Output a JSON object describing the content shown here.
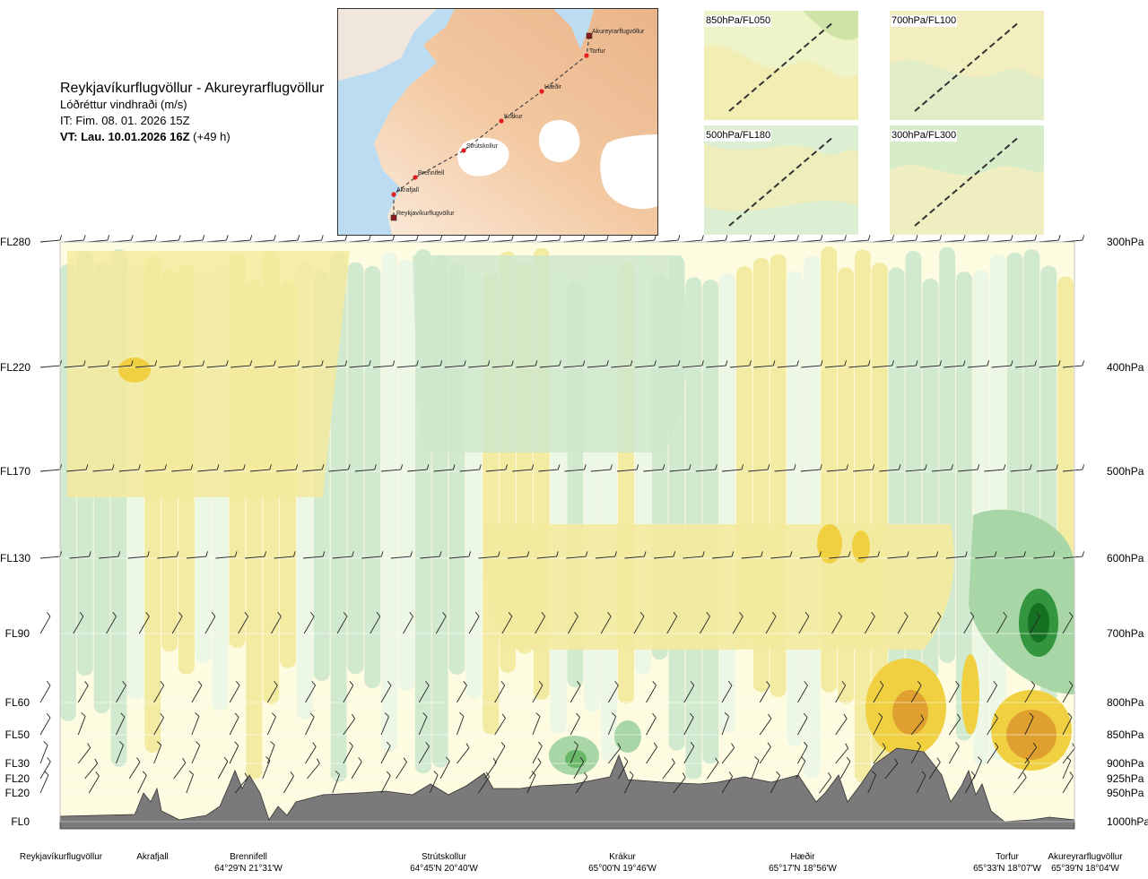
{
  "header": {
    "route": "Reykjavíkurflugvöllur - Akureyrarflugvöllur",
    "product": "Lóðréttur vindhraði (m/s)",
    "issue_time": "IT: Fim. 08. 01. 2026 15Z",
    "valid_prefix": "VT: Lau. 10.01.2026 16Z",
    "valid_suffix": " (+49 h)"
  },
  "route_map": {
    "points": [
      {
        "name": "Akureyrarflugvöllur",
        "type": "airport"
      },
      {
        "name": "Torfur",
        "type": "waypoint"
      },
      {
        "name": "Hæðir",
        "type": "waypoint"
      },
      {
        "name": "Krákur",
        "type": "waypoint"
      },
      {
        "name": "Strútskollur",
        "type": "waypoint"
      },
      {
        "name": "Brennifell",
        "type": "waypoint"
      },
      {
        "name": "Akrafjall",
        "type": "waypoint"
      },
      {
        "name": "Reykjavíkurflugvöllur",
        "type": "airport"
      }
    ]
  },
  "level_maps": [
    {
      "label": "850hPa/FL050"
    },
    {
      "label": "700hPa/FL100"
    },
    {
      "label": "500hPa/FL180"
    },
    {
      "label": "300hPa/FL300"
    }
  ],
  "chart_data": {
    "type": "heatmap",
    "title": "Lóðréttur vindhraði (m/s)",
    "left_axis_labels": [
      "FL280",
      "FL220",
      "FL170",
      "FL130",
      "FL90",
      "FL60",
      "FL50",
      "FL30",
      "FL20",
      "FL20",
      "FL0"
    ],
    "right_axis_labels": [
      "300hPa",
      "400hPa",
      "500hPa",
      "600hPa",
      "700hPa",
      "800hPa",
      "850hPa",
      "900hPa",
      "925hPa",
      "950hPa",
      "1000hPa"
    ],
    "pressure_levels_hpa": [
      300,
      400,
      500,
      600,
      700,
      800,
      850,
      900,
      925,
      950,
      1000
    ],
    "waypoints": [
      {
        "name": "Reykjavíkurflugvöllur",
        "coord": ""
      },
      {
        "name": "Akrafjall",
        "coord": ""
      },
      {
        "name": "Brennifell",
        "coord": "64°29'N 21°31'W"
      },
      {
        "name": "Strútskollur",
        "coord": "64°45'N 20°40'W"
      },
      {
        "name": "Krákur",
        "coord": "65°00'N 19°46'W"
      },
      {
        "name": "Hæðir",
        "coord": "65°17'N 18°56'W"
      },
      {
        "name": "Torfur",
        "coord": "65°33'N 18°07'W"
      },
      {
        "name": "Akureyrarflugvöllur",
        "coord": "65°39'N 18°04'W"
      }
    ],
    "colors": {
      "strong_down": "#e0a030",
      "down": "#f0d040",
      "weak_down": "#f3ea9e",
      "near_zero_warm": "#fdfbe0",
      "near_zero_cool": "#ecf7e6",
      "weak_up": "#cfe8cc",
      "up": "#a9d6a6",
      "strong_up": "#1f8a2a",
      "terrain": "#7a7a7a"
    }
  }
}
